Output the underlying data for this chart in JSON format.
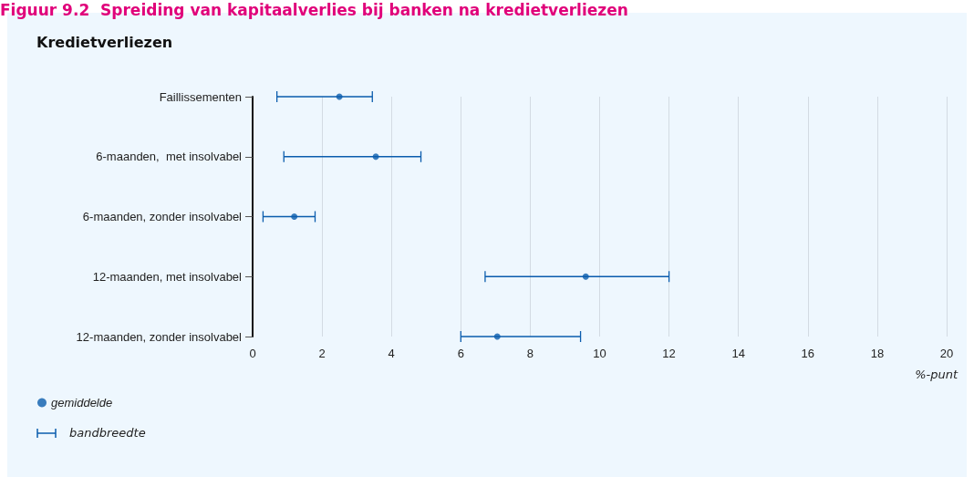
{
  "chart_data": {
    "type": "scatter",
    "orientation": "horizontal",
    "title": "Figuur 9.2  Spreiding van kapitaalverlies bij banken na kredietverliezen",
    "subtitle": "Kredietverliezen",
    "xlabel": "%-punt",
    "categories": [
      "Faillissementen",
      "6-maanden,  met insolvabel",
      "6-maanden, zonder insolvabel",
      "12-maanden, met insolvabel",
      "12-maanden, zonder insolvabel"
    ],
    "series": [
      {
        "name": "gemiddelde",
        "color": "#0a5cad",
        "values": [
          2.5,
          3.55,
          1.2,
          9.6,
          7.05
        ],
        "errors": [
          [
            0.7,
            3.45
          ],
          [
            0.9,
            4.85
          ],
          [
            0.3,
            1.8
          ],
          [
            6.7,
            12
          ],
          [
            6,
            9.45
          ]
        ]
      }
    ],
    "annotations": [
      "bandbreedte"
    ],
    "xlim": [
      0,
      20
    ],
    "xticks": [
      0,
      2,
      4,
      6,
      8,
      10,
      12,
      14,
      16,
      18,
      20
    ],
    "grid": "x",
    "legend": "bottom left",
    "marker": "circle"
  }
}
